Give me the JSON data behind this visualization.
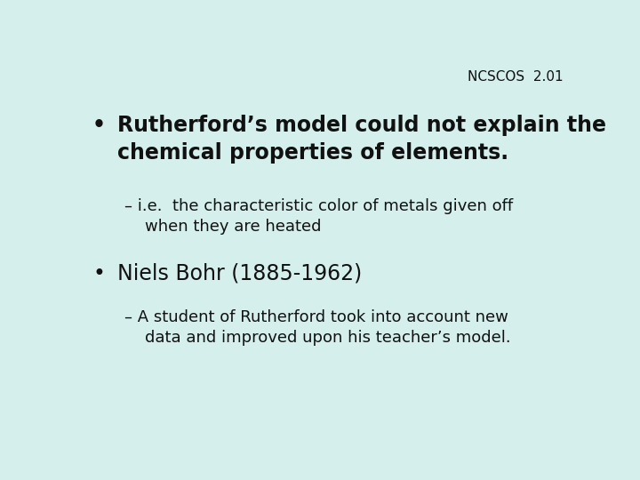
{
  "background_color": "#d5f0ec",
  "header_text": "NCSCOS  2.01",
  "header_fontsize": 11,
  "header_color": "#111111",
  "text_color": "#111111",
  "bullet1_text": "Rutherford’s model could not explain the\nchemical properties of elements.",
  "bullet1_fontsize": 17,
  "sub1_text": "– i.e.  the characteristic color of metals given off\n    when they are heated",
  "sub1_fontsize": 13,
  "bullet2_text": "Niels Bohr (1885-1962)",
  "bullet2_fontsize": 17,
  "sub2_text": "– A student of Rutherford took into account new\n    data and improved upon his teacher’s model.",
  "sub2_fontsize": 13
}
